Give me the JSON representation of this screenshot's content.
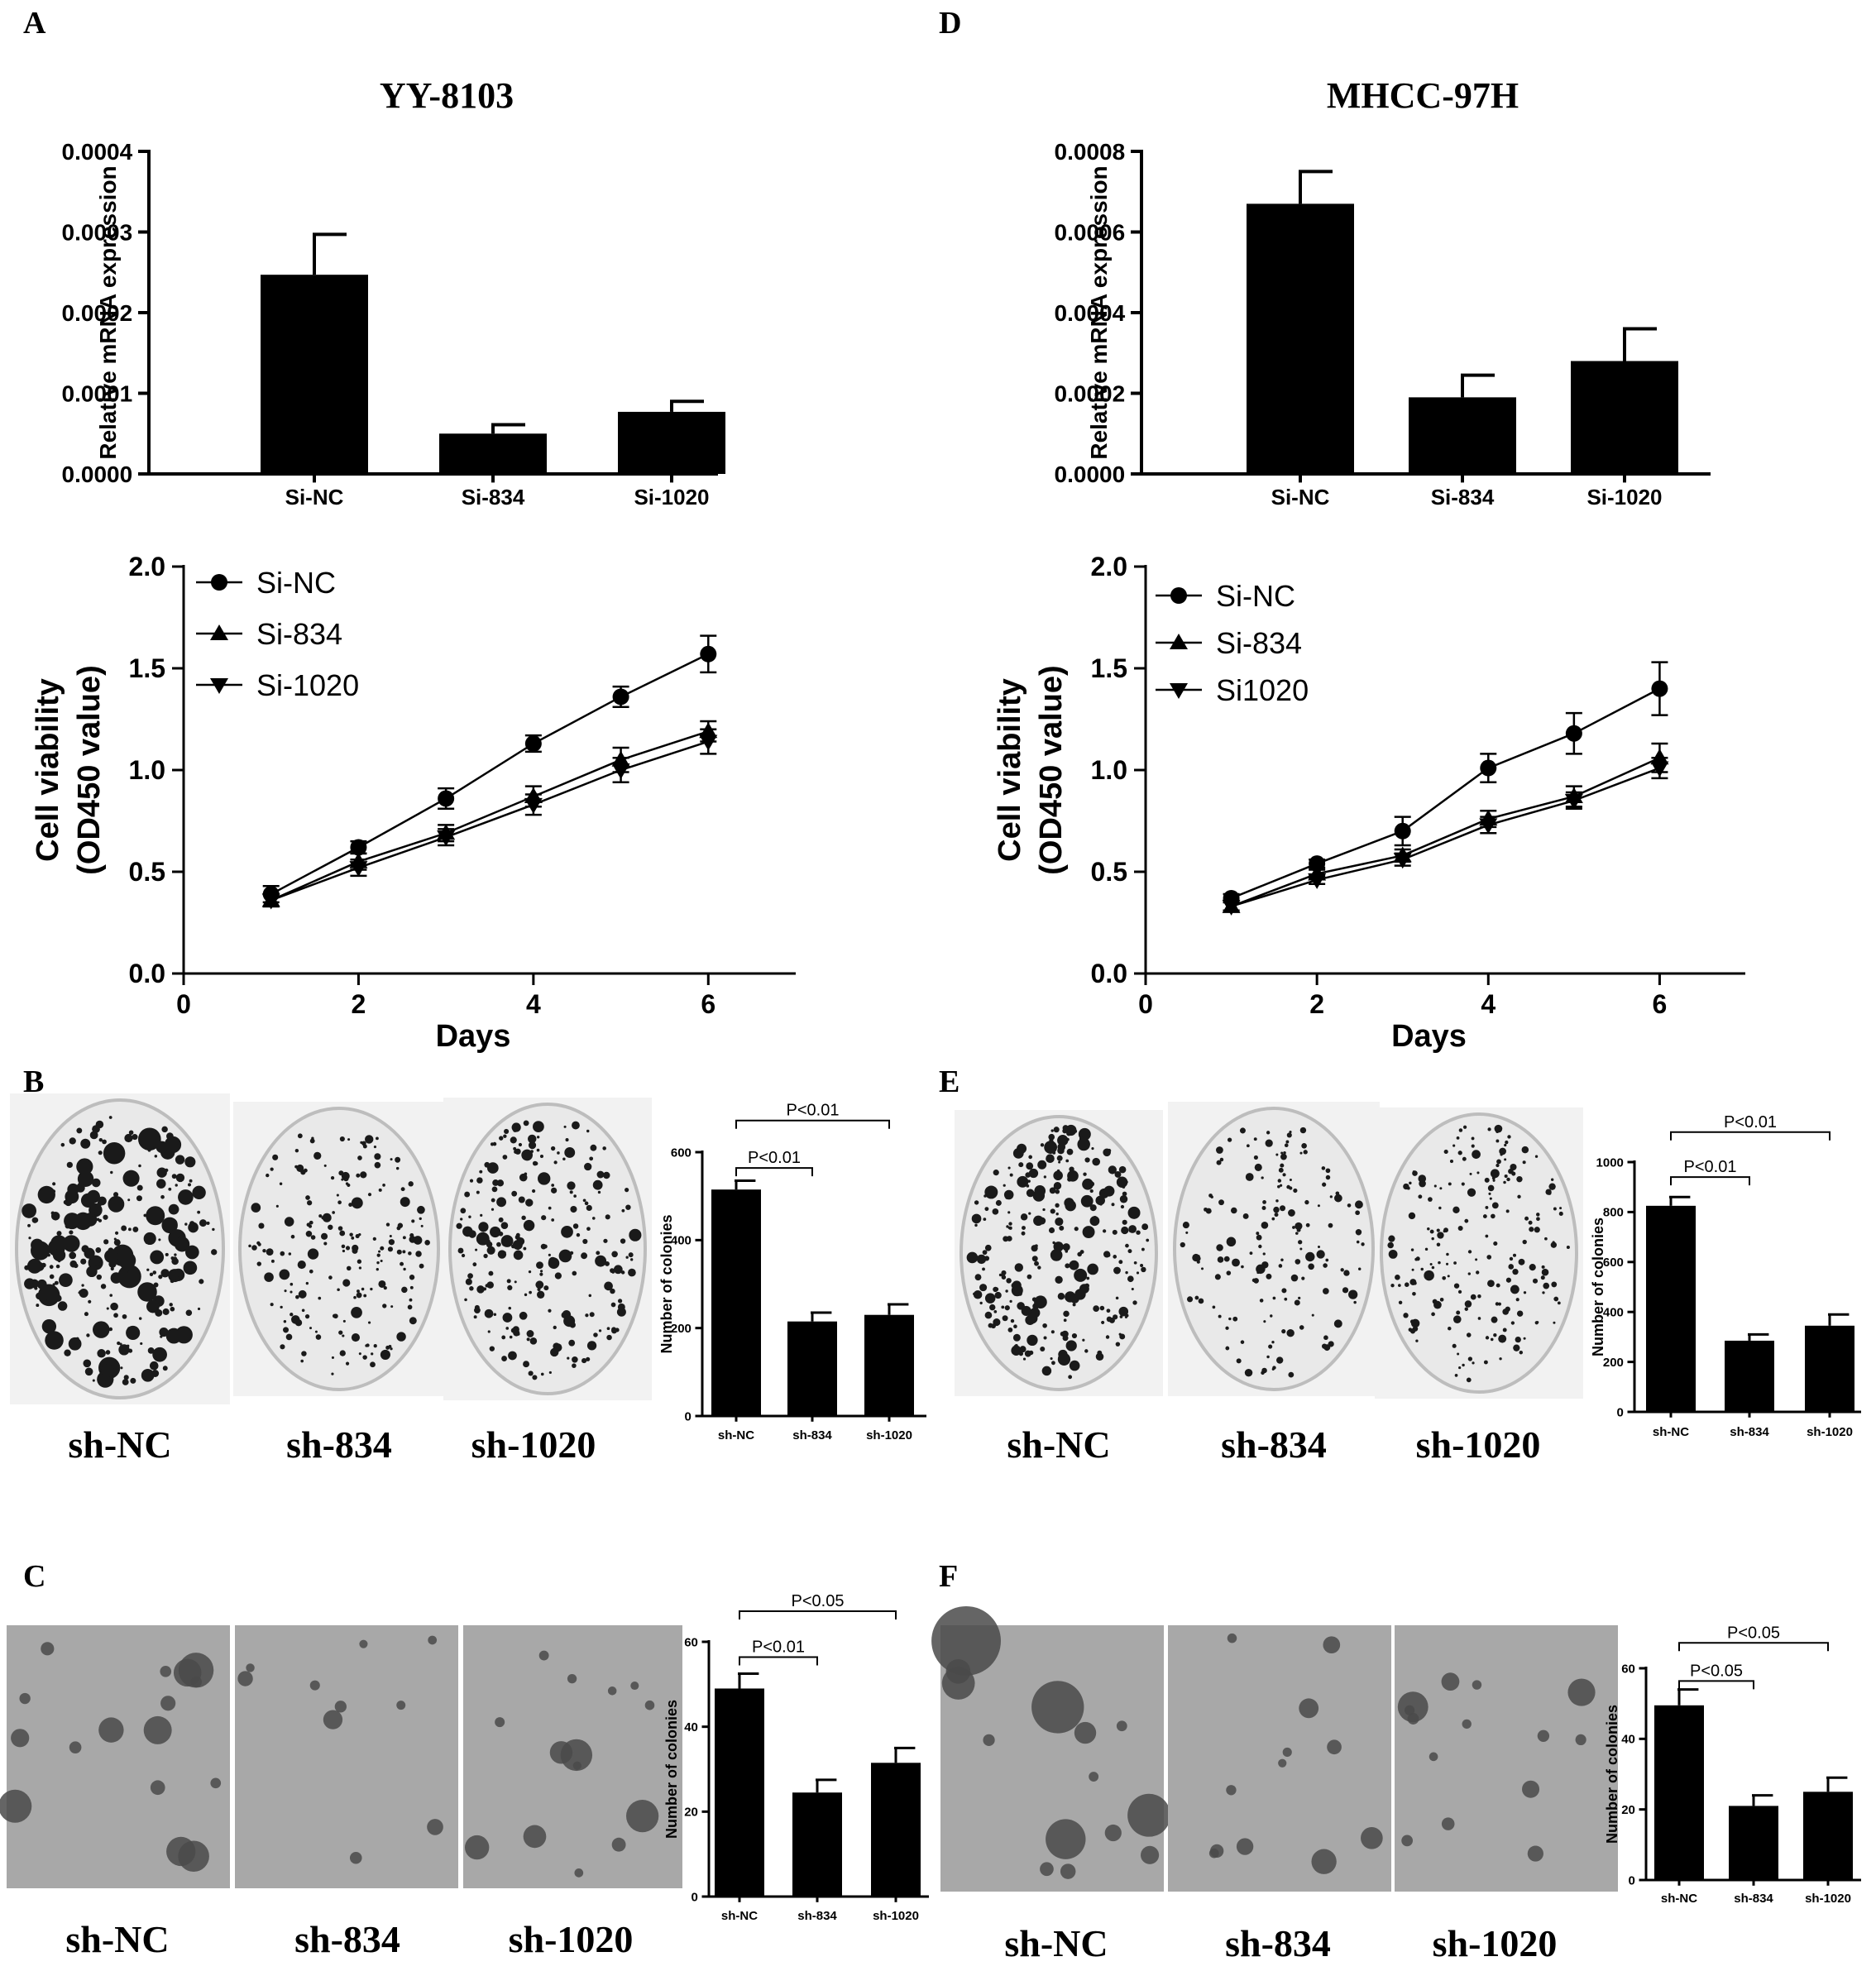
{
  "panels": {
    "A": {
      "letter": "A",
      "title": "YY-8103"
    },
    "B": {
      "letter": "B",
      "dish_labels": [
        "sh-NC",
        "sh-834",
        "sh-1020"
      ]
    },
    "C": {
      "letter": "C",
      "dish_labels": [
        "sh-NC",
        "sh-834",
        "sh-1020"
      ]
    },
    "D": {
      "letter": "D",
      "title": "MHCC-97H"
    },
    "E": {
      "letter": "E",
      "dish_labels": [
        "sh-NC",
        "sh-834",
        "sh-1020"
      ]
    },
    "F": {
      "letter": "F",
      "dish_labels": [
        "sh-NC",
        "sh-834",
        "sh-1020"
      ]
    }
  },
  "colors": {
    "bar": "#000000",
    "dish_bg": "#e9e9e9",
    "colony": "#1a1a1a",
    "photo_bg": "#a8a8a8"
  },
  "chart_data": [
    {
      "id": "A-mrna",
      "type": "bar",
      "ylabel": "Relative mRNA expression",
      "categories": [
        "Si-NC",
        "Si-834",
        "Si-1020"
      ],
      "values": [
        0.000247,
        5e-05,
        7.7e-05
      ],
      "errors": [
        5e-05,
        1.1e-05,
        1.3e-05
      ],
      "ylim": [
        0,
        0.0004
      ],
      "yticks": [
        "0.0000",
        "0.0001",
        "0.0002",
        "0.0003",
        "0.0004"
      ]
    },
    {
      "id": "A-viability",
      "type": "line",
      "ylabel": "Cell viability",
      "ylabel2": "(OD450 value)",
      "xlabel": "Days",
      "x": [
        1,
        2,
        3,
        4,
        5,
        6
      ],
      "xlim": [
        0,
        7
      ],
      "ylim": [
        0,
        2.0
      ],
      "xticks": [
        "0",
        "2",
        "4",
        "6"
      ],
      "yticks": [
        "0.0",
        "0.5",
        "1.0",
        "1.5",
        "2.0"
      ],
      "legend_position": "top-left",
      "series": [
        {
          "name": "Si-NC",
          "marker": "circle",
          "values": [
            0.39,
            0.62,
            0.86,
            1.13,
            1.36,
            1.57
          ],
          "errors": [
            0.04,
            0.03,
            0.05,
            0.04,
            0.05,
            0.09
          ]
        },
        {
          "name": "Si-834",
          "marker": "triangle-up",
          "values": [
            0.36,
            0.55,
            0.69,
            0.87,
            1.05,
            1.19
          ],
          "errors": [
            0.03,
            0.04,
            0.04,
            0.05,
            0.06,
            0.05
          ]
        },
        {
          "name": "Si-1020",
          "marker": "triangle-down",
          "values": [
            0.36,
            0.52,
            0.67,
            0.83,
            1.0,
            1.14
          ],
          "errors": [
            0.03,
            0.04,
            0.04,
            0.05,
            0.06,
            0.06
          ]
        }
      ]
    },
    {
      "id": "B-colonies",
      "type": "bar",
      "ylabel": "Number of colonies",
      "categories": [
        "sh-NC",
        "sh-834",
        "sh-1020"
      ],
      "values": [
        515,
        215,
        230
      ],
      "errors": [
        20,
        20,
        24
      ],
      "ylim": [
        0,
        600
      ],
      "yticks": [
        "0",
        "200",
        "400",
        "600"
      ],
      "annotations": [
        {
          "text": "P<0.01",
          "from": 0,
          "to": 1
        },
        {
          "text": "P<0.01",
          "from": 0,
          "to": 2
        }
      ]
    },
    {
      "id": "C-colonies",
      "type": "bar",
      "ylabel": "Number of colonies",
      "categories": [
        "sh-NC",
        "sh-834",
        "sh-1020"
      ],
      "values": [
        49,
        24.5,
        31.5
      ],
      "errors": [
        3.5,
        3,
        3.5
      ],
      "ylim": [
        0,
        60
      ],
      "yticks": [
        "0",
        "20",
        "40",
        "60"
      ],
      "annotations": [
        {
          "text": "P<0.01",
          "from": 0,
          "to": 1
        },
        {
          "text": "P<0.05",
          "from": 0,
          "to": 2
        }
      ]
    },
    {
      "id": "D-mrna",
      "type": "bar",
      "ylabel": "Relative mRNA expression",
      "categories": [
        "Si-NC",
        "Si-834",
        "Si-1020"
      ],
      "values": [
        0.00067,
        0.00019,
        0.00028
      ],
      "errors": [
        8e-05,
        5.5e-05,
        8e-05
      ],
      "ylim": [
        0,
        0.0008
      ],
      "yticks": [
        "0.0000",
        "0.0002",
        "0.0004",
        "0.0006",
        "0.0008"
      ]
    },
    {
      "id": "D-viability",
      "type": "line",
      "ylabel": "Cell viability",
      "ylabel2": "(OD450 value)",
      "xlabel": "Days",
      "x": [
        1,
        2,
        3,
        4,
        5,
        6
      ],
      "xlim": [
        0,
        7
      ],
      "ylim": [
        0,
        2.0
      ],
      "xticks": [
        "0",
        "2",
        "4",
        "6"
      ],
      "yticks": [
        "0.0",
        "0.5",
        "1.0",
        "1.5",
        "2.0"
      ],
      "legend_position": "top-left",
      "series": [
        {
          "name": "Si-NC",
          "marker": "circle",
          "values": [
            0.37,
            0.54,
            0.7,
            1.01,
            1.18,
            1.4
          ],
          "errors": [
            0.02,
            0.02,
            0.07,
            0.07,
            0.1,
            0.13
          ]
        },
        {
          "name": "Si-834",
          "marker": "triangle-up",
          "values": [
            0.33,
            0.49,
            0.58,
            0.76,
            0.87,
            1.06
          ],
          "errors": [
            0.02,
            0.02,
            0.03,
            0.04,
            0.05,
            0.07
          ]
        },
        {
          "name": "Si1020",
          "marker": "triangle-down",
          "values": [
            0.33,
            0.46,
            0.56,
            0.73,
            0.85,
            1.01
          ],
          "errors": [
            0.02,
            0.02,
            0.03,
            0.04,
            0.04,
            0.05
          ]
        }
      ]
    },
    {
      "id": "E-colonies",
      "type": "bar",
      "ylabel": "Number of colonies",
      "categories": [
        "sh-NC",
        "sh-834",
        "sh-1020"
      ],
      "values": [
        825,
        285,
        345
      ],
      "errors": [
        35,
        25,
        45
      ],
      "ylim": [
        0,
        1000
      ],
      "yticks": [
        "0",
        "200",
        "400",
        "600",
        "800",
        "1000"
      ],
      "annotations": [
        {
          "text": "P<0.01",
          "from": 0,
          "to": 1
        },
        {
          "text": "P<0.01",
          "from": 0,
          "to": 2
        }
      ]
    },
    {
      "id": "F-colonies",
      "type": "bar",
      "ylabel": "Number of colonies",
      "categories": [
        "sh-NC",
        "sh-834",
        "sh-1020"
      ],
      "values": [
        49.5,
        21,
        25
      ],
      "errors": [
        4.5,
        3,
        4
      ],
      "ylim": [
        0,
        60
      ],
      "yticks": [
        "0",
        "20",
        "40",
        "60"
      ],
      "annotations": [
        {
          "text": "P<0.05",
          "from": 0,
          "to": 1
        },
        {
          "text": "P<0.05",
          "from": 0,
          "to": 2
        }
      ]
    }
  ]
}
